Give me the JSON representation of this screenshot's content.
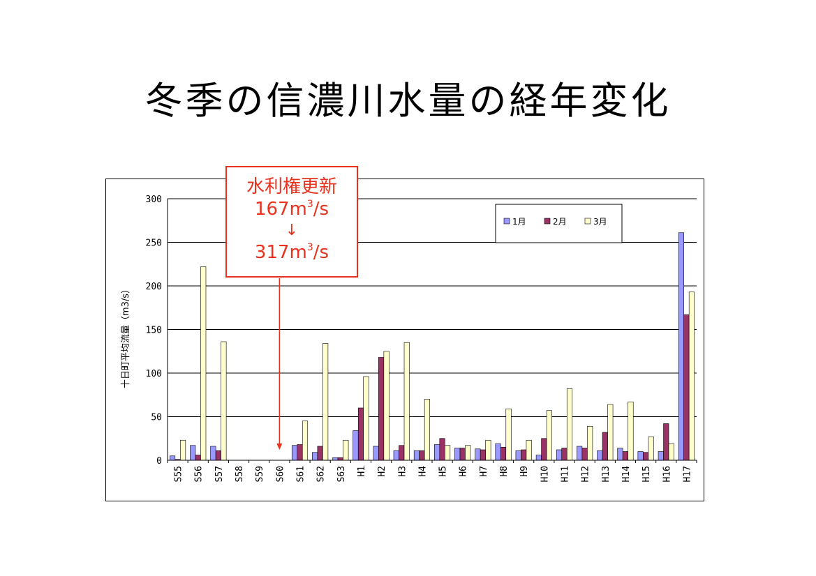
{
  "slide": {
    "title": "冬季の信濃川水量の経年変化"
  },
  "callout": {
    "line1": "水利権更新",
    "before_value": "167m",
    "before_sup": "3",
    "before_unit": "/s",
    "arrow": "↓",
    "after_value": "317m",
    "after_sup": "3",
    "after_unit": "/s",
    "color": "#e8321e",
    "points_to_category": "S60"
  },
  "chart_data": {
    "type": "bar",
    "title": "",
    "xlabel": "",
    "ylabel": "十日町平均流量（m3/s）",
    "ylim": [
      0,
      300
    ],
    "yticks": [
      0,
      50,
      100,
      150,
      200,
      250,
      300
    ],
    "grid": true,
    "legend_position": "top-right",
    "categories": [
      "S55",
      "S56",
      "S57",
      "S58",
      "S59",
      "S60",
      "S61",
      "S62",
      "S63",
      "H1",
      "H2",
      "H3",
      "H4",
      "H5",
      "H6",
      "H7",
      "H8",
      "H9",
      "H10",
      "H11",
      "H12",
      "H13",
      "H14",
      "H15",
      "H16",
      "H17"
    ],
    "series": [
      {
        "name": "1月",
        "color": "#9999ff",
        "values": [
          5,
          17,
          16,
          0,
          0,
          0,
          17,
          9,
          3,
          34,
          16,
          11,
          11,
          18,
          14,
          13,
          19,
          11,
          6,
          12,
          16,
          11,
          14,
          10,
          10,
          261
        ]
      },
      {
        "name": "2月",
        "color": "#993366",
        "values": [
          1,
          6,
          11,
          0,
          0,
          0,
          18,
          16,
          3,
          60,
          118,
          17,
          11,
          25,
          14,
          12,
          15,
          12,
          25,
          14,
          14,
          32,
          10,
          9,
          42,
          167
        ]
      },
      {
        "name": "3月",
        "color": "#ffffcc",
        "values": [
          23,
          222,
          136,
          0,
          0,
          0,
          45,
          134,
          23,
          96,
          125,
          135,
          70,
          17,
          17,
          23,
          59,
          23,
          57,
          82,
          39,
          64,
          67,
          27,
          19,
          193
        ]
      }
    ]
  }
}
